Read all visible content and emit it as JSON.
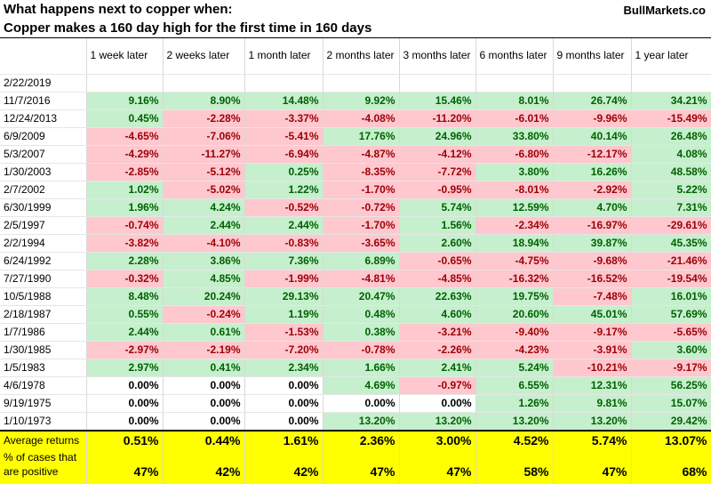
{
  "header": {
    "line1": "What happens next to copper when:",
    "line2": "Copper makes a 160 day high for the first time in 160 days",
    "brand": "BullMarkets.co"
  },
  "columns": [
    "1 week later",
    "2 weeks later",
    "1 month later",
    "2 months later",
    "3 months later",
    "6 months later",
    "9 months later",
    "1 year later"
  ],
  "rows": [
    {
      "date": "2/22/2019",
      "values": [
        "",
        "",
        "",
        "",
        "",
        "",
        "",
        ""
      ]
    },
    {
      "date": "11/7/2016",
      "values": [
        "9.16%",
        "8.90%",
        "14.48%",
        "9.92%",
        "15.46%",
        "8.01%",
        "26.74%",
        "34.21%"
      ]
    },
    {
      "date": "12/24/2013",
      "values": [
        "0.45%",
        "-2.28%",
        "-3.37%",
        "-4.08%",
        "-11.20%",
        "-6.01%",
        "-9.96%",
        "-15.49%"
      ]
    },
    {
      "date": "6/9/2009",
      "values": [
        "-4.65%",
        "-7.06%",
        "-5.41%",
        "17.76%",
        "24.96%",
        "33.80%",
        "40.14%",
        "26.48%"
      ]
    },
    {
      "date": "5/3/2007",
      "values": [
        "-4.29%",
        "-11.27%",
        "-6.94%",
        "-4.87%",
        "-4.12%",
        "-6.80%",
        "-12.17%",
        "4.08%"
      ]
    },
    {
      "date": "1/30/2003",
      "values": [
        "-2.85%",
        "-5.12%",
        "0.25%",
        "-8.35%",
        "-7.72%",
        "3.80%",
        "16.26%",
        "48.58%"
      ]
    },
    {
      "date": "2/7/2002",
      "values": [
        "1.02%",
        "-5.02%",
        "1.22%",
        "-1.70%",
        "-0.95%",
        "-8.01%",
        "-2.92%",
        "5.22%"
      ]
    },
    {
      "date": "6/30/1999",
      "values": [
        "1.96%",
        "4.24%",
        "-0.52%",
        "-0.72%",
        "5.74%",
        "12.59%",
        "4.70%",
        "7.31%"
      ]
    },
    {
      "date": "2/5/1997",
      "values": [
        "-0.74%",
        "2.44%",
        "2.44%",
        "-1.70%",
        "1.56%",
        "-2.34%",
        "-16.97%",
        "-29.61%"
      ]
    },
    {
      "date": "2/2/1994",
      "values": [
        "-3.82%",
        "-4.10%",
        "-0.83%",
        "-3.65%",
        "2.60%",
        "18.94%",
        "39.87%",
        "45.35%"
      ]
    },
    {
      "date": "6/24/1992",
      "values": [
        "2.28%",
        "3.86%",
        "7.36%",
        "6.89%",
        "-0.65%",
        "-4.75%",
        "-9.68%",
        "-21.46%"
      ]
    },
    {
      "date": "7/27/1990",
      "values": [
        "-0.32%",
        "4.85%",
        "-1.99%",
        "-4.81%",
        "-4.85%",
        "-16.32%",
        "-16.52%",
        "-19.54%"
      ]
    },
    {
      "date": "10/5/1988",
      "values": [
        "8.48%",
        "20.24%",
        "29.13%",
        "20.47%",
        "22.63%",
        "19.75%",
        "-7.48%",
        "16.01%"
      ]
    },
    {
      "date": "2/18/1987",
      "values": [
        "0.55%",
        "-0.24%",
        "1.19%",
        "0.48%",
        "4.60%",
        "20.60%",
        "45.01%",
        "57.69%"
      ]
    },
    {
      "date": "1/7/1986",
      "values": [
        "2.44%",
        "0.61%",
        "-1.53%",
        "0.38%",
        "-3.21%",
        "-9.40%",
        "-9.17%",
        "-5.65%"
      ]
    },
    {
      "date": "1/30/1985",
      "values": [
        "-2.97%",
        "-2.19%",
        "-7.20%",
        "-0.78%",
        "-2.26%",
        "-4.23%",
        "-3.91%",
        "3.60%"
      ]
    },
    {
      "date": "1/5/1983",
      "values": [
        "2.97%",
        "0.41%",
        "2.34%",
        "1.66%",
        "2.41%",
        "5.24%",
        "-10.21%",
        "-9.17%"
      ]
    },
    {
      "date": "4/6/1978",
      "values": [
        "0.00%",
        "0.00%",
        "0.00%",
        "4.69%",
        "-0.97%",
        "6.55%",
        "12.31%",
        "56.25%"
      ]
    },
    {
      "date": "9/19/1975",
      "values": [
        "0.00%",
        "0.00%",
        "0.00%",
        "0.00%",
        "0.00%",
        "1.26%",
        "9.81%",
        "15.07%"
      ]
    },
    {
      "date": "1/10/1973",
      "values": [
        "0.00%",
        "0.00%",
        "0.00%",
        "13.20%",
        "13.20%",
        "13.20%",
        "13.20%",
        "29.42%"
      ]
    }
  ],
  "summary": {
    "avg_label": "Average returns",
    "avg_values": [
      "0.51%",
      "0.44%",
      "1.61%",
      "2.36%",
      "3.00%",
      "4.52%",
      "5.74%",
      "13.07%"
    ],
    "pct_label_lines": [
      "% of cases that",
      "are positive"
    ],
    "pct_values": [
      "47%",
      "42%",
      "42%",
      "47%",
      "47%",
      "58%",
      "47%",
      "68%"
    ]
  },
  "colors": {
    "positive_bg": "#c6efce",
    "positive_text": "#006100",
    "negative_bg": "#ffc7ce",
    "negative_text": "#9c0006",
    "summary_bg": "#ffff00"
  }
}
